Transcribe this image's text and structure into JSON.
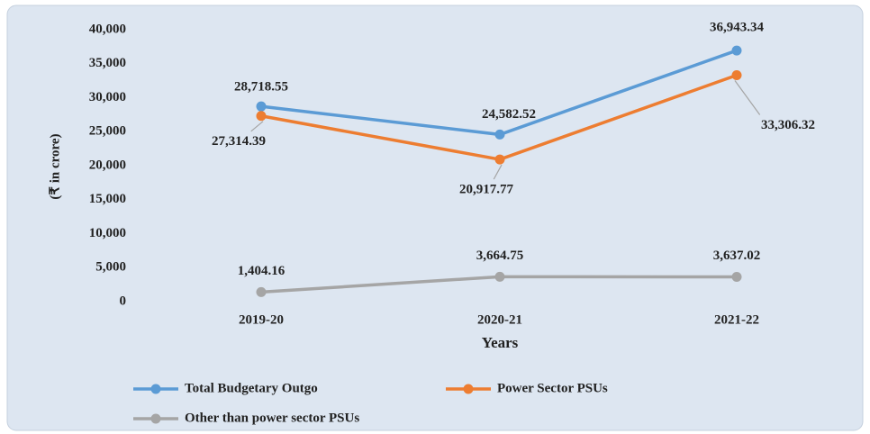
{
  "chart_data": {
    "type": "line",
    "y_label": "(₹ in crore)",
    "x_label": "Years",
    "categories": [
      "2019-20",
      "2020-21",
      "2021-22"
    ],
    "series": [
      {
        "name": "Total Budgetary Outgo",
        "color": "#5b9bd5",
        "values": [
          28718.55,
          24582.52,
          36943.34
        ],
        "value_labels": [
          "28,718.55",
          "24,582.52",
          "36,943.34"
        ]
      },
      {
        "name": "Power Sector PSUs",
        "color": "#ed7d31",
        "values": [
          27314.39,
          20917.77,
          33306.32
        ],
        "value_labels": [
          "27,314.39",
          "20,917.77",
          "33,306.32"
        ]
      },
      {
        "name": "Other than power sector PSUs",
        "color": "#a5a5a5",
        "values": [
          1404.16,
          3664.75,
          3637.02
        ],
        "value_labels": [
          "1,404.16",
          "3,664.75",
          "3,637.02"
        ]
      }
    ],
    "ylim": [
      0,
      40000
    ],
    "yticks": [
      0,
      {
        "value": 5000,
        "label": "5,000"
      },
      {
        "value": 10000,
        "label": "10,000"
      },
      {
        "value": 15000,
        "label": "15,000"
      },
      {
        "value": 20000,
        "label": "20,000"
      },
      {
        "value": 25000,
        "label": "25,000"
      },
      {
        "value": 30000,
        "label": "30,000"
      },
      {
        "value": 35000,
        "label": "35,000"
      },
      {
        "value": 40000,
        "label": "40,000"
      }
    ],
    "grid": false,
    "legend": "bottom"
  }
}
